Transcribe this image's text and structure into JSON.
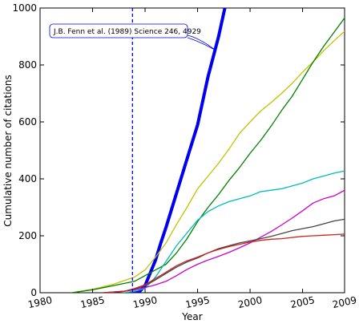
{
  "chart_data": {
    "type": "line",
    "xlabel": "Year",
    "ylabel": "Cumulative number of citations",
    "xlim": [
      1980,
      2009
    ],
    "ylim": [
      0,
      1000
    ],
    "x_ticks": [
      1980,
      1985,
      1990,
      1995,
      2000,
      2005,
      2009
    ],
    "y_ticks": [
      0,
      200,
      400,
      600,
      800,
      1000
    ],
    "grid": false,
    "annotation": {
      "text": "J.B. Fenn et al. (1989) Science 246, 4929",
      "vline_x": 1988.8,
      "arrow_to": [
        1996.8,
        850
      ],
      "color": "#0000ee"
    },
    "series": [
      {
        "color": "#0000ee",
        "emphasis": true,
        "points": [
          [
            1988.8,
            0
          ],
          [
            1989.5,
            5
          ],
          [
            1990,
            25
          ],
          [
            1990.5,
            70
          ],
          [
            1991,
            115
          ],
          [
            1991.5,
            175
          ],
          [
            1992,
            230
          ],
          [
            1993,
            350
          ],
          [
            1994,
            470
          ],
          [
            1995,
            590
          ],
          [
            1996,
            760
          ],
          [
            1997,
            900
          ],
          [
            1997.6,
            1000
          ]
        ]
      },
      {
        "color": "#c2c200",
        "points": [
          [
            1983,
            0
          ],
          [
            1985,
            12
          ],
          [
            1987,
            30
          ],
          [
            1989,
            55
          ],
          [
            1990,
            80
          ],
          [
            1991,
            125
          ],
          [
            1992,
            175
          ],
          [
            1993,
            240
          ],
          [
            1994,
            300
          ],
          [
            1995,
            365
          ],
          [
            1996,
            410
          ],
          [
            1997,
            455
          ],
          [
            1998,
            505
          ],
          [
            1999,
            560
          ],
          [
            2000,
            600
          ],
          [
            2001,
            638
          ],
          [
            2002,
            668
          ],
          [
            2003,
            700
          ],
          [
            2004,
            735
          ],
          [
            2005,
            775
          ],
          [
            2006,
            810
          ],
          [
            2007,
            850
          ],
          [
            2008,
            885
          ],
          [
            2009,
            918
          ]
        ]
      },
      {
        "color": "#008000",
        "points": [
          [
            1983,
            0
          ],
          [
            1985,
            10
          ],
          [
            1987,
            25
          ],
          [
            1989,
            40
          ],
          [
            1990,
            60
          ],
          [
            1991,
            80
          ],
          [
            1992,
            100
          ],
          [
            1993,
            140
          ],
          [
            1994,
            190
          ],
          [
            1995,
            250
          ],
          [
            1996,
            300
          ],
          [
            1997,
            345
          ],
          [
            1998,
            395
          ],
          [
            1999,
            440
          ],
          [
            2000,
            490
          ],
          [
            2001,
            535
          ],
          [
            2002,
            585
          ],
          [
            2003,
            640
          ],
          [
            2004,
            690
          ],
          [
            2005,
            750
          ],
          [
            2006,
            810
          ],
          [
            2007,
            865
          ],
          [
            2008,
            915
          ],
          [
            2009,
            965
          ]
        ]
      },
      {
        "color": "#00bbbb",
        "points": [
          [
            1988,
            0
          ],
          [
            1989,
            5
          ],
          [
            1990,
            15
          ],
          [
            1991,
            55
          ],
          [
            1992,
            110
          ],
          [
            1993,
            165
          ],
          [
            1994,
            210
          ],
          [
            1995,
            255
          ],
          [
            1996,
            285
          ],
          [
            1997,
            305
          ],
          [
            1998,
            320
          ],
          [
            1999,
            330
          ],
          [
            2000,
            340
          ],
          [
            2001,
            355
          ],
          [
            2002,
            360
          ],
          [
            2003,
            365
          ],
          [
            2004,
            375
          ],
          [
            2005,
            385
          ],
          [
            2006,
            400
          ],
          [
            2007,
            410
          ],
          [
            2008,
            420
          ],
          [
            2009,
            428
          ]
        ]
      },
      {
        "color": "#cc00cc",
        "points": [
          [
            1986,
            0
          ],
          [
            1988,
            5
          ],
          [
            1989,
            10
          ],
          [
            1990,
            18
          ],
          [
            1991,
            28
          ],
          [
            1992,
            40
          ],
          [
            1993,
            60
          ],
          [
            1994,
            82
          ],
          [
            1995,
            100
          ],
          [
            1996,
            115
          ],
          [
            1997,
            128
          ],
          [
            1998,
            142
          ],
          [
            1999,
            158
          ],
          [
            2000,
            175
          ],
          [
            2001,
            195
          ],
          [
            2002,
            215
          ],
          [
            2003,
            238
          ],
          [
            2004,
            262
          ],
          [
            2005,
            288
          ],
          [
            2006,
            315
          ],
          [
            2007,
            330
          ],
          [
            2008,
            340
          ],
          [
            2009,
            360
          ]
        ]
      },
      {
        "color": "#444444",
        "points": [
          [
            1986,
            0
          ],
          [
            1988,
            5
          ],
          [
            1989,
            12
          ],
          [
            1990,
            25
          ],
          [
            1991,
            45
          ],
          [
            1992,
            68
          ],
          [
            1993,
            90
          ],
          [
            1994,
            108
          ],
          [
            1995,
            122
          ],
          [
            1996,
            140
          ],
          [
            1997,
            155
          ],
          [
            1998,
            165
          ],
          [
            1999,
            175
          ],
          [
            2000,
            182
          ],
          [
            2001,
            190
          ],
          [
            2002,
            198
          ],
          [
            2003,
            208
          ],
          [
            2004,
            218
          ],
          [
            2005,
            225
          ],
          [
            2006,
            232
          ],
          [
            2007,
            242
          ],
          [
            2008,
            252
          ],
          [
            2009,
            258
          ]
        ]
      },
      {
        "color": "#cc2222",
        "points": [
          [
            1986,
            0
          ],
          [
            1988,
            5
          ],
          [
            1989,
            15
          ],
          [
            1990,
            28
          ],
          [
            1991,
            50
          ],
          [
            1992,
            72
          ],
          [
            1993,
            95
          ],
          [
            1994,
            112
          ],
          [
            1995,
            125
          ],
          [
            1996,
            140
          ],
          [
            1997,
            152
          ],
          [
            1998,
            162
          ],
          [
            1999,
            170
          ],
          [
            2000,
            178
          ],
          [
            2001,
            184
          ],
          [
            2002,
            188
          ],
          [
            2003,
            190
          ],
          [
            2004,
            194
          ],
          [
            2005,
            198
          ],
          [
            2006,
            200
          ],
          [
            2007,
            202
          ],
          [
            2008,
            204
          ],
          [
            2009,
            206
          ]
        ]
      }
    ]
  }
}
